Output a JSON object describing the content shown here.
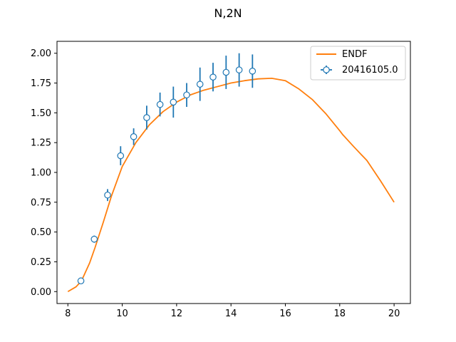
{
  "chart_data": {
    "type": "line",
    "title": "N,2N",
    "xlabel": "",
    "ylabel": "",
    "xlim": [
      7.6,
      20.6
    ],
    "ylim": [
      -0.1,
      2.1
    ],
    "xticks": [
      8,
      10,
      12,
      14,
      16,
      18,
      20
    ],
    "xtick_labels": [
      "8",
      "10",
      "12",
      "14",
      "16",
      "18",
      "20"
    ],
    "yticks": [
      0.0,
      0.25,
      0.5,
      0.75,
      1.0,
      1.25,
      1.5,
      1.75,
      2.0
    ],
    "ytick_labels": [
      "0.00",
      "0.25",
      "0.50",
      "0.75",
      "1.00",
      "1.25",
      "1.50",
      "1.75",
      "2.00"
    ],
    "grid": false,
    "legend_position": "top-right",
    "colors": {
      "endf": "#ff7f0e",
      "exp": "#1f77b4"
    },
    "series": [
      {
        "name": "ENDF",
        "kind": "line",
        "x": [
          8.0,
          8.3,
          8.5,
          8.8,
          9.0,
          9.3,
          9.6,
          10.0,
          10.5,
          11.0,
          11.5,
          12.0,
          12.5,
          13.0,
          13.5,
          14.0,
          14.5,
          15.0,
          15.5,
          16.0,
          16.5,
          17.0,
          17.5,
          18.0,
          18.1,
          18.5,
          19.0,
          19.5,
          20.0
        ],
        "y": [
          0.0,
          0.04,
          0.09,
          0.24,
          0.37,
          0.58,
          0.8,
          1.05,
          1.25,
          1.4,
          1.51,
          1.59,
          1.65,
          1.69,
          1.72,
          1.75,
          1.77,
          1.785,
          1.79,
          1.77,
          1.7,
          1.61,
          1.49,
          1.35,
          1.32,
          1.22,
          1.1,
          0.93,
          0.75
        ]
      },
      {
        "name": "20416105.0",
        "kind": "errorbar",
        "x": [
          8.48,
          8.97,
          9.46,
          9.94,
          10.42,
          10.9,
          11.39,
          11.88,
          12.37,
          12.86,
          13.34,
          13.82,
          14.3,
          14.79
        ],
        "y": [
          0.09,
          0.44,
          0.81,
          1.14,
          1.3,
          1.46,
          1.57,
          1.59,
          1.65,
          1.74,
          1.8,
          1.84,
          1.86,
          1.85
        ],
        "yerr": [
          0.02,
          0.03,
          0.05,
          0.08,
          0.07,
          0.1,
          0.1,
          0.13,
          0.1,
          0.14,
          0.12,
          0.14,
          0.14,
          0.14
        ]
      }
    ]
  }
}
